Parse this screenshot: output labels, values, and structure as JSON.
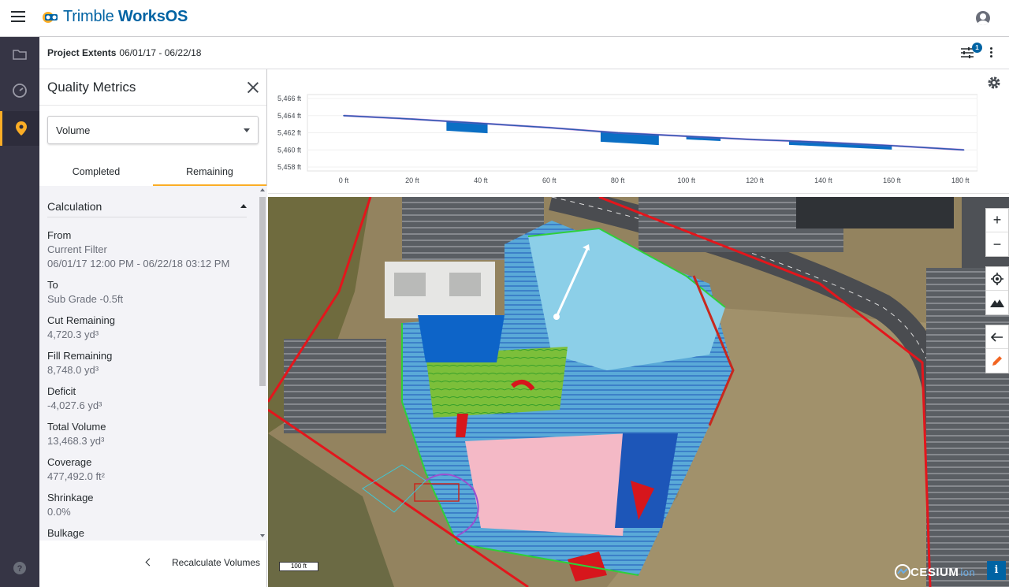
{
  "app": {
    "name_part1": "Trimble",
    "name_part2": "WorksOS"
  },
  "subheader": {
    "title": "Project Extents",
    "dates": "06/01/17 - 06/22/18",
    "filter_count": "1"
  },
  "panel": {
    "title": "Quality Metrics",
    "select_value": "Volume",
    "tabs": [
      {
        "label": "Completed"
      },
      {
        "label": "Remaining"
      }
    ],
    "section_title": "Calculation",
    "metrics": [
      {
        "label": "From",
        "values": [
          "Current Filter",
          "06/01/17 12:00 PM - 06/22/18 03:12 PM"
        ]
      },
      {
        "label": "To",
        "values": [
          "Sub Grade -0.5ft"
        ]
      },
      {
        "label": "Cut Remaining",
        "values": [
          "4,720.3 yd³"
        ]
      },
      {
        "label": "Fill Remaining",
        "values": [
          "8,748.0 yd³"
        ]
      },
      {
        "label": "Deficit",
        "values": [
          "-4,027.6 yd³"
        ]
      },
      {
        "label": "Total Volume",
        "values": [
          "13,468.3 yd³"
        ]
      },
      {
        "label": "Coverage",
        "values": [
          "477,492.0 ft²"
        ]
      },
      {
        "label": "Shrinkage",
        "values": [
          "0.0%"
        ]
      },
      {
        "label": "Bulkage",
        "values": []
      }
    ],
    "recalculate_label": "Recalculate Volumes"
  },
  "chart_data": {
    "type": "area",
    "ylabels": [
      "5,466 ft",
      "5,464 ft",
      "5,462 ft",
      "5,460 ft",
      "5,458 ft"
    ],
    "xlabels": [
      "0 ft",
      "20 ft",
      "40 ft",
      "60 ft",
      "80 ft",
      "100 ft",
      "120 ft",
      "140 ft",
      "160 ft",
      "180 ft"
    ],
    "ylim": [
      5458,
      5466
    ],
    "xlim": [
      0,
      185
    ],
    "series": [
      {
        "values_x": [
          0,
          20,
          40,
          60,
          80,
          100,
          120,
          140,
          160,
          181
        ],
        "values_y": [
          5464.0,
          5463.6,
          5463.1,
          5462.6,
          5462.0,
          5461.6,
          5461.2,
          5460.9,
          5460.5,
          5460.0
        ]
      }
    ],
    "colors": {
      "line": "#2d5bb0",
      "fill": "#0b6fc4",
      "accent": "#9a4fd0"
    }
  },
  "map": {
    "scale_label": "100 ft",
    "attribution_main": "CESIUM",
    "attribution_sub": "ion",
    "info_label": "i"
  },
  "colors": {
    "brand": "#0063a3",
    "accent": "#fbad26",
    "rail": "#363545"
  }
}
